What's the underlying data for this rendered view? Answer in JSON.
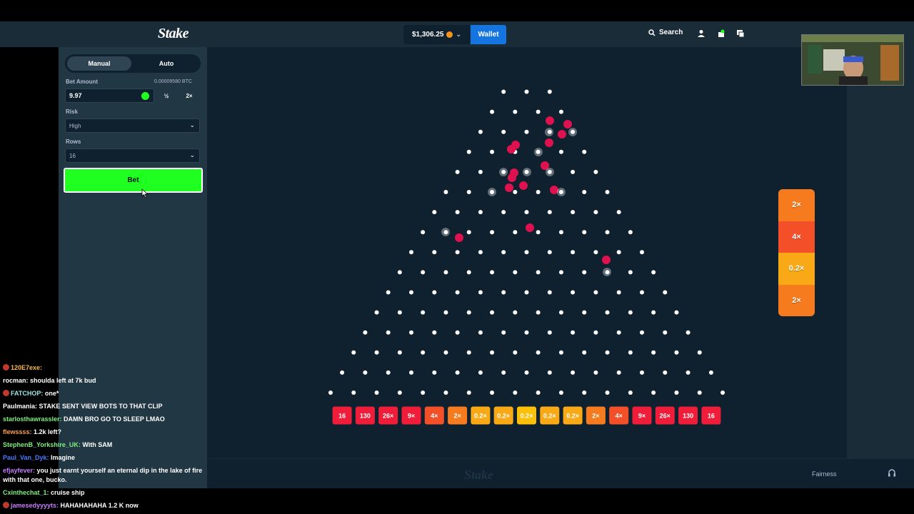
{
  "header": {
    "logo": "Stake",
    "balance": "$1,306.25",
    "wallet_label": "Wallet",
    "search_label": "Search"
  },
  "sidebar": {
    "tabs": [
      {
        "label": "Manual"
      },
      {
        "label": "Auto"
      }
    ],
    "bet_amount_label": "Bet Amount",
    "bet_amount_btc": "0.00009580 BTC",
    "bet_amount_value": "9.97",
    "half_label": "½",
    "double_label": "2×",
    "risk_label": "Risk",
    "risk_value": "High",
    "rows_label": "Rows",
    "rows_value": "16",
    "bet_button": "Bet"
  },
  "plinko": {
    "rows": 16,
    "multipliers": [
      "16",
      "130",
      "26×",
      "9×",
      "4×",
      "2×",
      "0.2×",
      "0.2×",
      "0.2×",
      "0.2×",
      "0.2×",
      "2×",
      "4×",
      "9×",
      "26×",
      "130",
      "16"
    ],
    "recent_results": [
      "2×",
      "4×",
      "0.2×",
      "2×"
    ],
    "colors": {
      "peg": "#ffffff",
      "ball": "#e0114f",
      "red": "#f01d3a",
      "orange_red": "#f3502a",
      "orange": "#f57b1e",
      "amber": "#f9a915",
      "yellow": "#fdc009"
    }
  },
  "footer": {
    "logo": "Stake",
    "fairness": "Fairness"
  },
  "chat": [
    {
      "user": "120E7exe:",
      "msg": "",
      "color": "#f5b94a",
      "badge": true
    },
    {
      "user": "rocman:",
      "msg": "shoulda left at 7k bud",
      "color": "#ffffff",
      "badge": false
    },
    {
      "user": "FATCHOP:",
      "msg": "one*",
      "color": "#9ee6e6",
      "badge": true
    },
    {
      "user": "Paulmania:",
      "msg": "STAKE SENT VIEW BOTS TO THAT CLIP",
      "color": "#ffffff",
      "badge": false
    },
    {
      "user": "starlosthawrassler:",
      "msg": "DAMN BRO GO TO SLEEP LMAO",
      "color": "#7df07d",
      "badge": false
    },
    {
      "user": "flewssss:",
      "msg": "1.2k left?",
      "color": "#ff9e4a",
      "badge": false
    },
    {
      "user": "StephenB_Yorkshire_UK:",
      "msg": "With SAM",
      "color": "#7df07d",
      "badge": false
    },
    {
      "user": "Paul_Van_Dyk:",
      "msg": "Imagine",
      "color": "#4a7bff",
      "badge": false
    },
    {
      "user": "efjayfever:",
      "msg": "you just earnt yourself an eternal dip in the lake of fire with that one, bucko.",
      "color": "#c77dff",
      "badge": false
    },
    {
      "user": "Cxinthechat_1:",
      "msg": "cruise ship",
      "color": "#7df07d",
      "badge": false
    },
    {
      "user": "jamesedyyyyts:",
      "msg": "HAHAHAHAHA 1.2 K now",
      "color": "#c77dff",
      "badge": true
    }
  ]
}
